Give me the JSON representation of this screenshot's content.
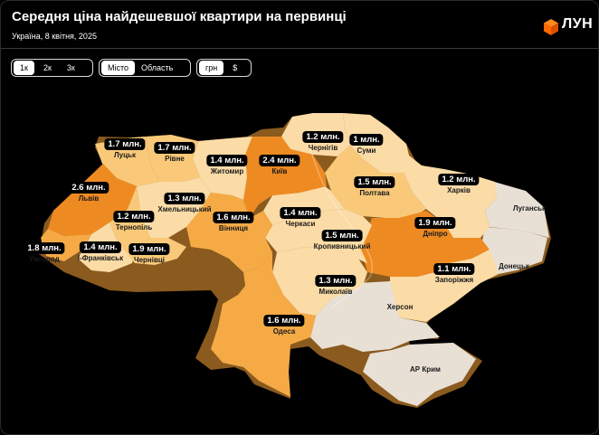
{
  "header": {
    "title": "Середня ціна найдешевшої квартири на первинці",
    "subtitle": "Україна, 8 квітня, 2025",
    "logo_text": "ЛУН"
  },
  "filters": {
    "rooms": {
      "options": [
        "1к",
        "2к",
        "3к"
      ],
      "selected": "1к"
    },
    "scope": {
      "options": [
        "Місто",
        "Область"
      ],
      "selected": "Місто"
    },
    "currency": {
      "options": [
        "грн",
        "$"
      ],
      "selected": "грн"
    }
  },
  "colors": {
    "background": "#000000",
    "price_high": "#EE8A22",
    "price_mid": "#F5AA45",
    "price_low": "#F9C979",
    "price_lowest": "#FBDBA6",
    "no_data": "#E8E0D5",
    "label_bg": "#000000",
    "accent": "#FF6A00"
  },
  "regions": [
    {
      "city": "Луцьк",
      "price": "1.7 млн."
    },
    {
      "city": "Рівне",
      "price": "1.7 млн."
    },
    {
      "city": "Житомир",
      "price": "1.4 млн."
    },
    {
      "city": "Київ",
      "price": "2.4 млн."
    },
    {
      "city": "Чернігів",
      "price": "1.2 млн."
    },
    {
      "city": "Суми",
      "price": "1 млн."
    },
    {
      "city": "Львів",
      "price": "2.6 млн."
    },
    {
      "city": "Хмельницький",
      "price": "1.3 млн."
    },
    {
      "city": "Тернопіль",
      "price": "1.2 млн."
    },
    {
      "city": "Вінниця",
      "price": "1.6 млн."
    },
    {
      "city": "Черкаси",
      "price": "1.4 млн."
    },
    {
      "city": "Полтава",
      "price": "1.5 млн."
    },
    {
      "city": "Харків",
      "price": "1.2 млн."
    },
    {
      "city": "Ужгород",
      "price": "1.8 млн."
    },
    {
      "city": "І-Франківськ",
      "price": "1.4 млн."
    },
    {
      "city": "Чернівці",
      "price": "1.9 млн."
    },
    {
      "city": "Кропивницький",
      "price": "1.5 млн."
    },
    {
      "city": "Дніпро",
      "price": "1.9 млн."
    },
    {
      "city": "Миколаїв",
      "price": "1.3 млн."
    },
    {
      "city": "Запоріжжя",
      "price": "1.1 млн."
    },
    {
      "city": "Одеса",
      "price": "1.6 млн."
    }
  ],
  "no_data_regions": [
    "Луганськ",
    "Донецьк",
    "Херсон",
    "АР Крим"
  ]
}
